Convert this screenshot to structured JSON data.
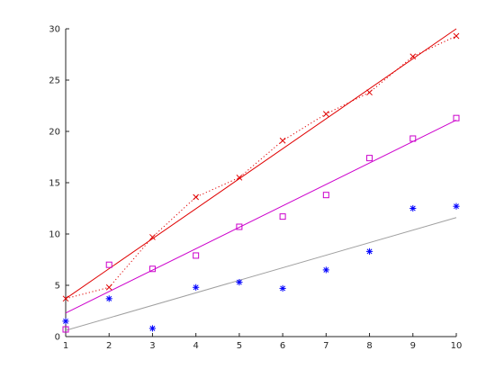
{
  "colors": {
    "axis": "#262626",
    "background": "#ffffff"
  },
  "chart_data": {
    "type": "scatter",
    "title": "",
    "xlabel": "",
    "ylabel": "",
    "xlim": [
      1,
      10
    ],
    "ylim": [
      0,
      30
    ],
    "grid": false,
    "legend": "none",
    "x_ticks": [
      1,
      2,
      3,
      4,
      5,
      6,
      7,
      8,
      9,
      10
    ],
    "y_ticks": [
      0,
      5,
      10,
      15,
      20,
      25,
      30
    ],
    "x": [
      1,
      2,
      3,
      4,
      5,
      6,
      7,
      8,
      9,
      10
    ],
    "series": [
      {
        "marker": "asterisk",
        "color": "#0000ff",
        "values": [
          1.5,
          3.7,
          0.8,
          4.8,
          5.3,
          4.7,
          6.5,
          8.3,
          12.5,
          12.7
        ],
        "fit": {
          "color": "#a0a0a0",
          "y_start": 0.6,
          "y_end": 11.6
        }
      },
      {
        "marker": "square",
        "color": "#cc00cc",
        "values": [
          0.7,
          7.0,
          6.6,
          7.9,
          10.7,
          11.7,
          13.8,
          17.4,
          19.3,
          21.3
        ],
        "fit": {
          "color": "#cc00cc",
          "y_start": 2.3,
          "y_end": 21.1
        }
      },
      {
        "marker": "x",
        "color": "#e00000",
        "connect": "dotted",
        "values": [
          3.7,
          4.8,
          9.7,
          13.6,
          15.5,
          19.1,
          21.7,
          23.8,
          27.3,
          29.3
        ],
        "fit": {
          "color": "#e00000",
          "y_start": 3.7,
          "y_end": 30.0
        }
      }
    ]
  }
}
